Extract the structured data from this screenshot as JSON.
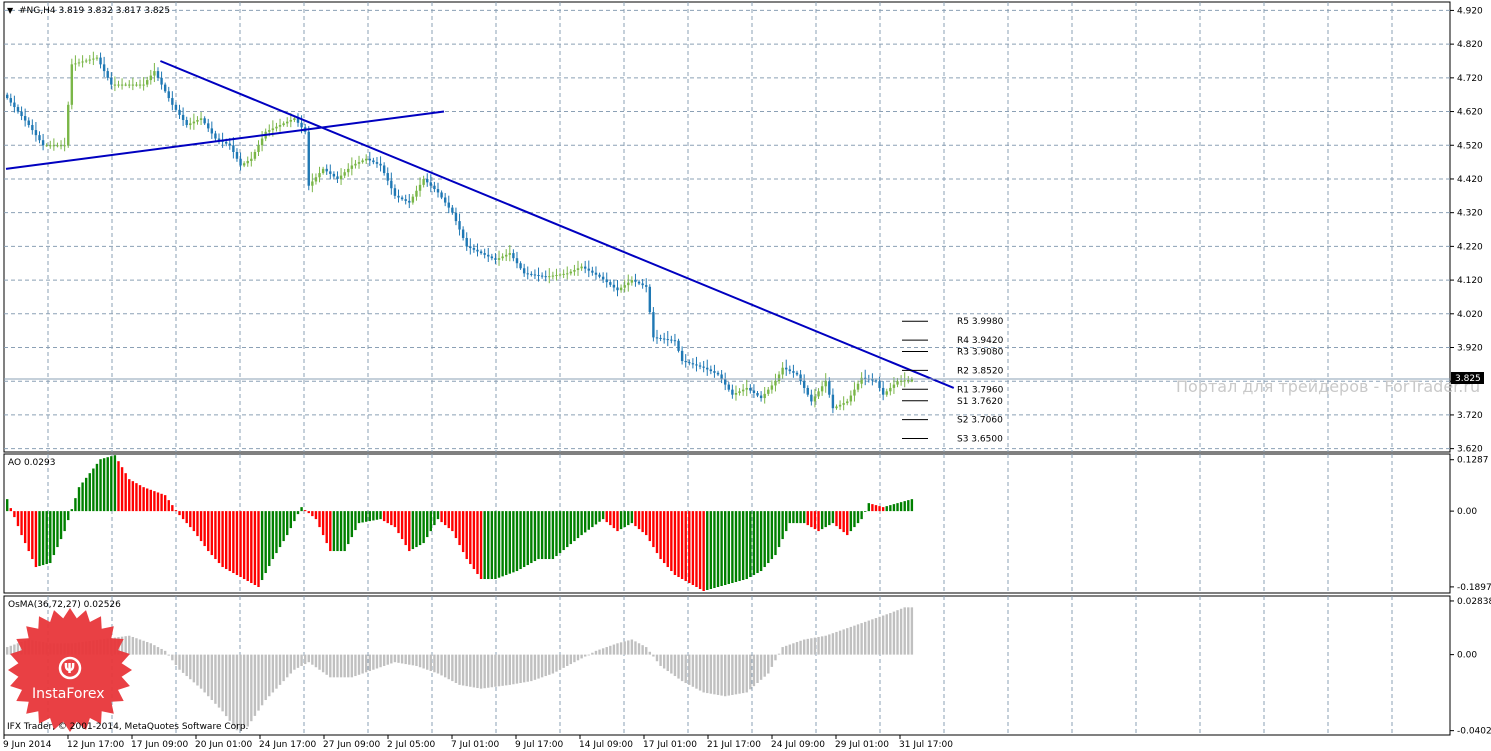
{
  "window": {
    "symbol_header": "#NG,H4  3.819 3.832 3.817 3.825",
    "current_price_tag": "3.825",
    "watermark": "Портал для трейдеров - ForTrader.ru",
    "copyright": "IFX Trader, © 2001-2014, MetaQuotes Software Corp.",
    "brand_logo_text": "InstaForex"
  },
  "colors": {
    "bull_candle": "#7ab648",
    "bear_candle": "#1f78b4",
    "trendline": "#0000c0",
    "ao_up": "#008000",
    "ao_down": "#ff0000",
    "osma": "#c0c0c0",
    "grid": "#8ba0b5",
    "logo": "#e8363a"
  },
  "chart_data": [
    {
      "type": "candlestick",
      "name_label": "#NG,H4",
      "ohlc_last": {
        "open": 3.819,
        "high": 3.832,
        "low": 3.817,
        "close": 3.825
      },
      "y_ticks": [
        "4.920",
        "4.820",
        "4.720",
        "4.620",
        "4.520",
        "4.420",
        "4.320",
        "4.220",
        "4.120",
        "4.020",
        "3.920",
        "3.820",
        "3.720",
        "3.620"
      ],
      "ylim": [
        3.61,
        4.945
      ],
      "x_ticks": [
        "9 Jun 2014",
        "12 Jun 17:00",
        "17 Jun 09:00",
        "20 Jun 01:00",
        "24 Jun 17:00",
        "27 Jun 09:00",
        "2 Jul 05:00",
        "7 Jul 01:00",
        "9 Jul 17:00",
        "14 Jul 09:00",
        "17 Jul 01:00",
        "21 Jul 17:00",
        "24 Jul 09:00",
        "29 Jul 01:00",
        "31 Jul 17:00"
      ],
      "close_anchors": [
        [
          0,
          4.66
        ],
        [
          6,
          4.58
        ],
        [
          10,
          4.52
        ],
        [
          16,
          4.52
        ],
        [
          18,
          4.76
        ],
        [
          25,
          4.78
        ],
        [
          29,
          4.7
        ],
        [
          38,
          4.7
        ],
        [
          41,
          4.74
        ],
        [
          46,
          4.64
        ],
        [
          50,
          4.58
        ],
        [
          54,
          4.6
        ],
        [
          58,
          4.54
        ],
        [
          62,
          4.52
        ],
        [
          65,
          4.46
        ],
        [
          68,
          4.48
        ],
        [
          72,
          4.56
        ],
        [
          76,
          4.58
        ],
        [
          80,
          4.6
        ],
        [
          83,
          4.56
        ],
        [
          84,
          4.4
        ],
        [
          88,
          4.45
        ],
        [
          92,
          4.42
        ],
        [
          96,
          4.46
        ],
        [
          100,
          4.48
        ],
        [
          104,
          4.46
        ],
        [
          108,
          4.37
        ],
        [
          112,
          4.35
        ],
        [
          116,
          4.42
        ],
        [
          120,
          4.38
        ],
        [
          124,
          4.32
        ],
        [
          128,
          4.22
        ],
        [
          132,
          4.2
        ],
        [
          136,
          4.18
        ],
        [
          140,
          4.2
        ],
        [
          144,
          4.14
        ],
        [
          150,
          4.13
        ],
        [
          156,
          4.14
        ],
        [
          160,
          4.16
        ],
        [
          165,
          4.13
        ],
        [
          170,
          4.09
        ],
        [
          174,
          4.12
        ],
        [
          178,
          4.1
        ],
        [
          180,
          3.95
        ],
        [
          186,
          3.94
        ],
        [
          188,
          3.88
        ],
        [
          194,
          3.86
        ],
        [
          198,
          3.84
        ],
        [
          202,
          3.78
        ],
        [
          206,
          3.8
        ],
        [
          210,
          3.77
        ],
        [
          214,
          3.82
        ],
        [
          216,
          3.86
        ],
        [
          220,
          3.84
        ],
        [
          224,
          3.76
        ],
        [
          228,
          3.82
        ],
        [
          230,
          3.74
        ],
        [
          234,
          3.76
        ],
        [
          238,
          3.83
        ],
        [
          242,
          3.82
        ],
        [
          244,
          3.78
        ],
        [
          248,
          3.82
        ],
        [
          252,
          3.825
        ]
      ],
      "pivot_levels": [
        {
          "label": "R5 3.9980",
          "value": 3.998
        },
        {
          "label": "R4 3.9420",
          "value": 3.942
        },
        {
          "label": "R3 3.9080",
          "value": 3.908
        },
        {
          "label": "R2 3.8520",
          "value": 3.852
        },
        {
          "label": "R1 3.7960",
          "value": 3.796
        },
        {
          "label": "S1 3.7620",
          "value": 3.762
        },
        {
          "label": "S2 3.7060",
          "value": 3.706
        },
        {
          "label": "S3 3.6500",
          "value": 3.65
        }
      ],
      "trendlines": [
        {
          "from": [
            43,
            4.77
          ],
          "to": [
            264,
            3.8
          ]
        },
        {
          "from": [
            0,
            4.45
          ],
          "to": [
            122,
            4.62
          ]
        }
      ]
    },
    {
      "type": "histogram",
      "name_label": "AO 0.0293",
      "y_ticks": [
        "0.1287",
        "0.00",
        "-0.1897"
      ],
      "ylim": [
        -0.205,
        0.143
      ],
      "anchors": [
        [
          0,
          0.03
        ],
        [
          4,
          -0.06
        ],
        [
          8,
          -0.14
        ],
        [
          12,
          -0.13
        ],
        [
          16,
          -0.05
        ],
        [
          20,
          0.06
        ],
        [
          26,
          0.13
        ],
        [
          30,
          0.14
        ],
        [
          34,
          0.08
        ],
        [
          38,
          0.06
        ],
        [
          44,
          0.04
        ],
        [
          48,
          -0.01
        ],
        [
          52,
          -0.05
        ],
        [
          56,
          -0.1
        ],
        [
          60,
          -0.14
        ],
        [
          64,
          -0.16
        ],
        [
          68,
          -0.18
        ],
        [
          70,
          -0.19
        ],
        [
          74,
          -0.12
        ],
        [
          78,
          -0.06
        ],
        [
          82,
          0.01
        ],
        [
          86,
          -0.02
        ],
        [
          90,
          -0.1
        ],
        [
          94,
          -0.1
        ],
        [
          98,
          -0.03
        ],
        [
          104,
          -0.02
        ],
        [
          108,
          -0.04
        ],
        [
          112,
          -0.1
        ],
        [
          116,
          -0.08
        ],
        [
          120,
          -0.02
        ],
        [
          124,
          -0.05
        ],
        [
          128,
          -0.12
        ],
        [
          132,
          -0.17
        ],
        [
          136,
          -0.17
        ],
        [
          142,
          -0.15
        ],
        [
          148,
          -0.12
        ],
        [
          152,
          -0.12
        ],
        [
          156,
          -0.09
        ],
        [
          160,
          -0.06
        ],
        [
          166,
          -0.02
        ],
        [
          170,
          -0.05
        ],
        [
          174,
          -0.03
        ],
        [
          178,
          -0.06
        ],
        [
          182,
          -0.12
        ],
        [
          186,
          -0.16
        ],
        [
          190,
          -0.18
        ],
        [
          194,
          -0.2
        ],
        [
          198,
          -0.19
        ],
        [
          202,
          -0.18
        ],
        [
          206,
          -0.17
        ],
        [
          210,
          -0.15
        ],
        [
          214,
          -0.11
        ],
        [
          218,
          -0.03
        ],
        [
          222,
          -0.03
        ],
        [
          226,
          -0.05
        ],
        [
          230,
          -0.03
        ],
        [
          234,
          -0.06
        ],
        [
          238,
          -0.02
        ],
        [
          240,
          0.02
        ],
        [
          244,
          0.01
        ],
        [
          248,
          0.02
        ],
        [
          252,
          0.03
        ]
      ]
    },
    {
      "type": "histogram",
      "name_label": "OsMA(36,72,27) 0.02526",
      "y_ticks": [
        "0.02838",
        "0.00",
        "-0.0402"
      ],
      "ylim": [
        -0.0425,
        0.031
      ],
      "anchors": [
        [
          0,
          0.004
        ],
        [
          6,
          0.008
        ],
        [
          12,
          0.006
        ],
        [
          18,
          0.006
        ],
        [
          26,
          0.008
        ],
        [
          34,
          0.01
        ],
        [
          40,
          0.006
        ],
        [
          44,
          0.002
        ],
        [
          48,
          -0.008
        ],
        [
          54,
          -0.018
        ],
        [
          60,
          -0.03
        ],
        [
          64,
          -0.04
        ],
        [
          67,
          -0.038
        ],
        [
          72,
          -0.024
        ],
        [
          76,
          -0.016
        ],
        [
          80,
          -0.008
        ],
        [
          84,
          -0.004
        ],
        [
          90,
          -0.012
        ],
        [
          96,
          -0.012
        ],
        [
          102,
          -0.008
        ],
        [
          108,
          -0.004
        ],
        [
          114,
          -0.006
        ],
        [
          120,
          -0.01
        ],
        [
          126,
          -0.016
        ],
        [
          132,
          -0.018
        ],
        [
          140,
          -0.016
        ],
        [
          146,
          -0.014
        ],
        [
          152,
          -0.01
        ],
        [
          158,
          -0.004
        ],
        [
          164,
          0.002
        ],
        [
          170,
          0.006
        ],
        [
          174,
          0.008
        ],
        [
          178,
          0.004
        ],
        [
          182,
          -0.006
        ],
        [
          188,
          -0.014
        ],
        [
          194,
          -0.02
        ],
        [
          200,
          -0.022
        ],
        [
          206,
          -0.02
        ],
        [
          212,
          -0.01
        ],
        [
          216,
          0.004
        ],
        [
          222,
          0.008
        ],
        [
          228,
          0.01
        ],
        [
          234,
          0.014
        ],
        [
          240,
          0.018
        ],
        [
          246,
          0.022
        ],
        [
          250,
          0.025
        ],
        [
          252,
          0.025
        ]
      ]
    }
  ]
}
